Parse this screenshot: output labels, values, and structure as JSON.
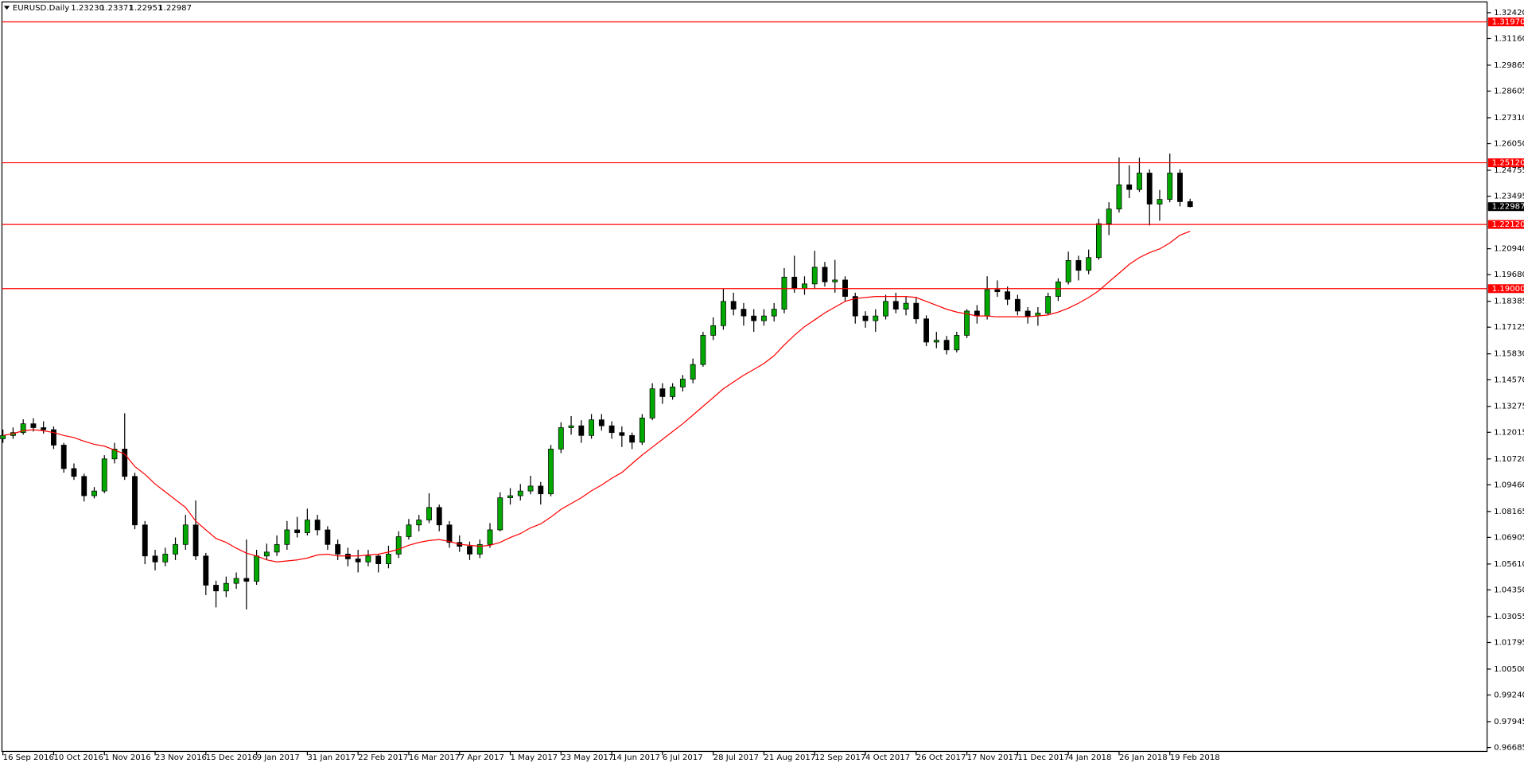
{
  "chart_data": {
    "type": "candlestick",
    "title": "EURUSD.Daily",
    "header_values": [
      {
        "value": 1.2323,
        "label": "1.23230"
      },
      {
        "value": 1.23371,
        "label": "1.23371"
      },
      {
        "value": 1.22951,
        "label": "1.22951"
      },
      {
        "value": 1.22987,
        "label": "1.22987"
      }
    ],
    "date_labels": [
      "16 Sep 2016",
      "10 Oct 2016",
      "1 Nov 2016",
      "23 Nov 2016",
      "15 Dec 2016",
      "9 Jan 2017",
      "31 Jan 2017",
      "22 Feb 2017",
      "16 Mar 2017",
      "7 Apr 2017",
      "1 May 2017",
      "23 May 2017",
      "14 Jun 2017",
      "6 Jul 2017",
      "28 Jul 2017",
      "21 Aug 2017",
      "12 Sep 2017",
      "4 Oct 2017",
      "26 Oct 2017",
      "17 Nov 2017",
      "11 Dec 2017",
      "4 Jan 2018",
      "26 Jan 2018",
      "19 Feb 2018"
    ],
    "bull_color": "#00a800",
    "bear_color": "#000000",
    "ohlc": [
      [
        1.117,
        1.1215,
        1.115,
        1.1186
      ],
      [
        1.1186,
        1.1225,
        1.117,
        1.12
      ],
      [
        1.12,
        1.1265,
        1.119,
        1.1243
      ],
      [
        1.1243,
        1.127,
        1.1205,
        1.1224
      ],
      [
        1.1224,
        1.1255,
        1.1195,
        1.1214
      ],
      [
        1.1214,
        1.123,
        1.112,
        1.1139
      ],
      [
        1.1139,
        1.115,
        1.1005,
        1.1025
      ],
      [
        1.1025,
        1.105,
        1.097,
        1.0987
      ],
      [
        1.0987,
        1.1,
        1.0865,
        1.0893
      ],
      [
        1.0893,
        1.0935,
        1.088,
        1.0916
      ],
      [
        1.0916,
        1.109,
        1.0905,
        1.1072
      ],
      [
        1.1072,
        1.115,
        1.105,
        1.112
      ],
      [
        1.112,
        1.1294,
        1.097,
        1.0987
      ],
      [
        1.0987,
        1.1005,
        1.073,
        1.0751
      ],
      [
        1.0751,
        1.077,
        1.056,
        1.06
      ],
      [
        1.06,
        1.063,
        1.053,
        1.0571
      ],
      [
        1.0571,
        1.064,
        1.055,
        1.0609
      ],
      [
        1.0609,
        1.069,
        1.058,
        1.0656
      ],
      [
        1.0656,
        1.08,
        1.063,
        1.0751
      ],
      [
        1.0751,
        1.087,
        1.058,
        1.06
      ],
      [
        1.06,
        1.0615,
        1.041,
        1.0458
      ],
      [
        1.0458,
        1.048,
        1.035,
        1.043
      ],
      [
        1.043,
        1.05,
        1.04,
        1.0467
      ],
      [
        1.0467,
        1.052,
        1.044,
        1.0491
      ],
      [
        1.0491,
        1.068,
        1.034,
        1.0477
      ],
      [
        1.0477,
        1.063,
        1.046,
        1.06
      ],
      [
        1.06,
        1.066,
        1.058,
        1.0619
      ],
      [
        1.0619,
        1.07,
        1.06,
        1.0656
      ],
      [
        1.0656,
        1.077,
        1.063,
        1.0727
      ],
      [
        1.0727,
        1.079,
        1.069,
        1.0713
      ],
      [
        1.0713,
        1.083,
        1.07,
        1.0775
      ],
      [
        1.0775,
        1.08,
        1.07,
        1.0727
      ],
      [
        1.0727,
        1.0745,
        1.063,
        1.0656
      ],
      [
        1.0656,
        1.068,
        1.058,
        1.0609
      ],
      [
        1.0609,
        1.064,
        1.055,
        1.0586
      ],
      [
        1.0586,
        1.063,
        1.052,
        1.0571
      ],
      [
        1.0571,
        1.063,
        1.055,
        1.06
      ],
      [
        1.06,
        1.061,
        1.052,
        1.0562
      ],
      [
        1.0562,
        1.065,
        1.054,
        1.0609
      ],
      [
        1.0609,
        1.072,
        1.059,
        1.0694
      ],
      [
        1.0694,
        1.078,
        1.068,
        1.0751
      ],
      [
        1.0751,
        1.08,
        1.072,
        1.0775
      ],
      [
        1.0775,
        1.0905,
        1.076,
        1.0836
      ],
      [
        1.0836,
        1.085,
        1.072,
        1.0751
      ],
      [
        1.0751,
        1.077,
        1.064,
        1.0666
      ],
      [
        1.0666,
        1.07,
        1.062,
        1.0647
      ],
      [
        1.0647,
        1.067,
        1.058,
        1.0609
      ],
      [
        1.0609,
        1.068,
        1.059,
        1.0656
      ],
      [
        1.0656,
        1.076,
        1.064,
        1.0727
      ],
      [
        1.0727,
        1.091,
        1.072,
        1.0883
      ],
      [
        1.0883,
        1.093,
        1.085,
        1.0893
      ],
      [
        1.0893,
        1.095,
        1.087,
        1.0916
      ],
      [
        1.0916,
        1.099,
        1.09,
        1.094
      ],
      [
        1.094,
        1.096,
        1.085,
        1.0902
      ],
      [
        1.0902,
        1.114,
        1.089,
        1.112
      ],
      [
        1.112,
        1.125,
        1.11,
        1.1224
      ],
      [
        1.1224,
        1.128,
        1.119,
        1.1233
      ],
      [
        1.1233,
        1.126,
        1.115,
        1.1186
      ],
      [
        1.1186,
        1.129,
        1.117,
        1.1262
      ],
      [
        1.1262,
        1.129,
        1.121,
        1.1233
      ],
      [
        1.1233,
        1.1255,
        1.117,
        1.12
      ],
      [
        1.12,
        1.123,
        1.113,
        1.1186
      ],
      [
        1.1186,
        1.12,
        1.112,
        1.1153
      ],
      [
        1.1153,
        1.129,
        1.114,
        1.1271
      ],
      [
        1.1271,
        1.144,
        1.126,
        1.1413
      ],
      [
        1.1413,
        1.144,
        1.134,
        1.1375
      ],
      [
        1.1375,
        1.144,
        1.136,
        1.1422
      ],
      [
        1.1422,
        1.148,
        1.14,
        1.146
      ],
      [
        1.146,
        1.156,
        1.144,
        1.1531
      ],
      [
        1.1531,
        1.169,
        1.152,
        1.1673
      ],
      [
        1.1673,
        1.176,
        1.165,
        1.172
      ],
      [
        1.172,
        1.19,
        1.17,
        1.1838
      ],
      [
        1.1838,
        1.188,
        1.177,
        1.18
      ],
      [
        1.18,
        1.183,
        1.172,
        1.1767
      ],
      [
        1.1767,
        1.18,
        1.169,
        1.1744
      ],
      [
        1.1744,
        1.18,
        1.172,
        1.1767
      ],
      [
        1.1767,
        1.183,
        1.174,
        1.18
      ],
      [
        1.18,
        1.2,
        1.178,
        1.1956
      ],
      [
        1.1956,
        1.206,
        1.188,
        1.19
      ],
      [
        1.19,
        1.196,
        1.187,
        1.1923
      ],
      [
        1.1923,
        1.2084,
        1.19,
        1.2004
      ],
      [
        1.2004,
        1.203,
        1.191,
        1.1933
      ],
      [
        1.1933,
        1.204,
        1.188,
        1.1942
      ],
      [
        1.1942,
        1.196,
        1.184,
        1.1862
      ],
      [
        1.1862,
        1.188,
        1.173,
        1.1767
      ],
      [
        1.1767,
        1.179,
        1.171,
        1.1744
      ],
      [
        1.1744,
        1.18,
        1.169,
        1.1767
      ],
      [
        1.1767,
        1.187,
        1.175,
        1.1838
      ],
      [
        1.1838,
        1.188,
        1.178,
        1.18
      ],
      [
        1.18,
        1.186,
        1.177,
        1.1829
      ],
      [
        1.1829,
        1.186,
        1.173,
        1.1753
      ],
      [
        1.1753,
        1.177,
        1.162,
        1.164
      ],
      [
        1.164,
        1.169,
        1.161,
        1.1649
      ],
      [
        1.1649,
        1.167,
        1.158,
        1.1602
      ],
      [
        1.1602,
        1.169,
        1.159,
        1.1673
      ],
      [
        1.1673,
        1.18,
        1.166,
        1.1791
      ],
      [
        1.1791,
        1.182,
        1.173,
        1.1767
      ],
      [
        1.1767,
        1.196,
        1.175,
        1.1895
      ],
      [
        1.1895,
        1.194,
        1.186,
        1.1885
      ],
      [
        1.1885,
        1.191,
        1.182,
        1.1848
      ],
      [
        1.1848,
        1.187,
        1.177,
        1.1791
      ],
      [
        1.1791,
        1.181,
        1.173,
        1.1767
      ],
      [
        1.1767,
        1.181,
        1.172,
        1.1781
      ],
      [
        1.1781,
        1.188,
        1.177,
        1.1862
      ],
      [
        1.1862,
        1.195,
        1.184,
        1.1933
      ],
      [
        1.1933,
        1.208,
        1.192,
        1.2037
      ],
      [
        1.2037,
        1.206,
        1.194,
        1.1989
      ],
      [
        1.1989,
        1.209,
        1.197,
        1.2051
      ],
      [
        1.2051,
        1.224,
        1.204,
        1.2216
      ],
      [
        1.2216,
        1.232,
        1.216,
        1.2287
      ],
      [
        1.2287,
        1.2538,
        1.227,
        1.2405
      ],
      [
        1.2405,
        1.25,
        1.234,
        1.2382
      ],
      [
        1.2382,
        1.2537,
        1.237,
        1.2462
      ],
      [
        1.2462,
        1.248,
        1.2207,
        1.2311
      ],
      [
        1.2311,
        1.238,
        1.223,
        1.2334
      ],
      [
        1.2334,
        1.2557,
        1.232,
        1.2462
      ],
      [
        1.2462,
        1.248,
        1.23,
        1.2323
      ],
      [
        1.2323,
        1.23371,
        1.22951,
        1.22987
      ]
    ],
    "ma": {
      "color": "#ff0000",
      "values": [
        1.1186,
        1.1195,
        1.1209,
        1.1214,
        1.1209,
        1.12,
        1.1186,
        1.1176,
        1.1158,
        1.1143,
        1.1134,
        1.1115,
        1.1096,
        1.1035,
        1.0997,
        1.095,
        1.0912,
        1.0874,
        1.0836,
        1.077,
        1.0727,
        1.0685,
        1.0666,
        1.0638,
        1.0614,
        1.06,
        1.0581,
        1.0571,
        1.0576,
        1.0581,
        1.059,
        1.0605,
        1.0609,
        1.06,
        1.06,
        1.06,
        1.0605,
        1.0609,
        1.0619,
        1.0633,
        1.0652,
        1.0666,
        1.0675,
        1.068,
        1.0671,
        1.0657,
        1.0652,
        1.0647,
        1.0652,
        1.0666,
        1.069,
        1.0709,
        1.0737,
        1.0756,
        1.0789,
        1.0827,
        1.0855,
        1.0883,
        1.0917,
        1.0945,
        1.0978,
        1.1006,
        1.1049,
        1.1091,
        1.1129,
        1.1167,
        1.1205,
        1.1243,
        1.1285,
        1.1328,
        1.137,
        1.1413,
        1.1446,
        1.1479,
        1.1507,
        1.1536,
        1.1574,
        1.1626,
        1.1673,
        1.1715,
        1.1748,
        1.1782,
        1.181,
        1.1838,
        1.1852,
        1.1857,
        1.1862,
        1.1862,
        1.1862,
        1.1862,
        1.1857,
        1.1838,
        1.1819,
        1.18,
        1.1786,
        1.1777,
        1.1767,
        1.1767,
        1.1763,
        1.1763,
        1.1763,
        1.1763,
        1.1767,
        1.1772,
        1.1786,
        1.1805,
        1.1829,
        1.1857,
        1.189,
        1.1933,
        1.1975,
        1.2018,
        1.2051,
        1.2075,
        1.2093,
        1.2122,
        1.216,
        1.2179
      ]
    },
    "levels": {
      "color": "#ff0000",
      "values": [
        {
          "value": 1.3197,
          "label": "1.31970"
        },
        {
          "value": 1.2512,
          "label": "1.25120"
        },
        {
          "value": 1.2212,
          "label": "1.22120"
        },
        {
          "value": 1.19,
          "label": "1.19000"
        }
      ]
    },
    "bid": {
      "value": 1.22987,
      "label": "1.22987"
    },
    "ylim": [
      0.96496,
      1.3294
    ],
    "yticks": [
      {
        "value": 1.3242,
        "label": "1.32420"
      },
      {
        "value": 1.3116,
        "label": "1.31160"
      },
      {
        "value": 1.29865,
        "label": "1.29865"
      },
      {
        "value": 1.28605,
        "label": "1.28605"
      },
      {
        "value": 1.2731,
        "label": "1.27310"
      },
      {
        "value": 1.2605,
        "label": "1.26050"
      },
      {
        "value": 1.24755,
        "label": "1.24755"
      },
      {
        "value": 1.23495,
        "label": "1.23495"
      },
      {
        "value": 1.2094,
        "label": "1.20940"
      },
      {
        "value": 1.1968,
        "label": "1.19680"
      },
      {
        "value": 1.18385,
        "label": "1.18385"
      },
      {
        "value": 1.17125,
        "label": "1.17125"
      },
      {
        "value": 1.1583,
        "label": "1.15830"
      },
      {
        "value": 1.1457,
        "label": "1.14570"
      },
      {
        "value": 1.13275,
        "label": "1.13275"
      },
      {
        "value": 1.12015,
        "label": "1.12015"
      },
      {
        "value": 1.1072,
        "label": "1.10720"
      },
      {
        "value": 1.0946,
        "label": "1.09460"
      },
      {
        "value": 1.08165,
        "label": "1.08165"
      },
      {
        "value": 1.06905,
        "label": "1.06905"
      },
      {
        "value": 1.0561,
        "label": "1.05610"
      },
      {
        "value": 1.0435,
        "label": "1.04350"
      },
      {
        "value": 1.03055,
        "label": "1.03055"
      },
      {
        "value": 1.01795,
        "label": "1.01795"
      },
      {
        "value": 1.005,
        "label": "1.00500"
      },
      {
        "value": 0.9924,
        "label": "0.99240"
      },
      {
        "value": 0.97945,
        "label": "0.97945"
      },
      {
        "value": 0.96685,
        "label": "0.96685"
      }
    ]
  }
}
